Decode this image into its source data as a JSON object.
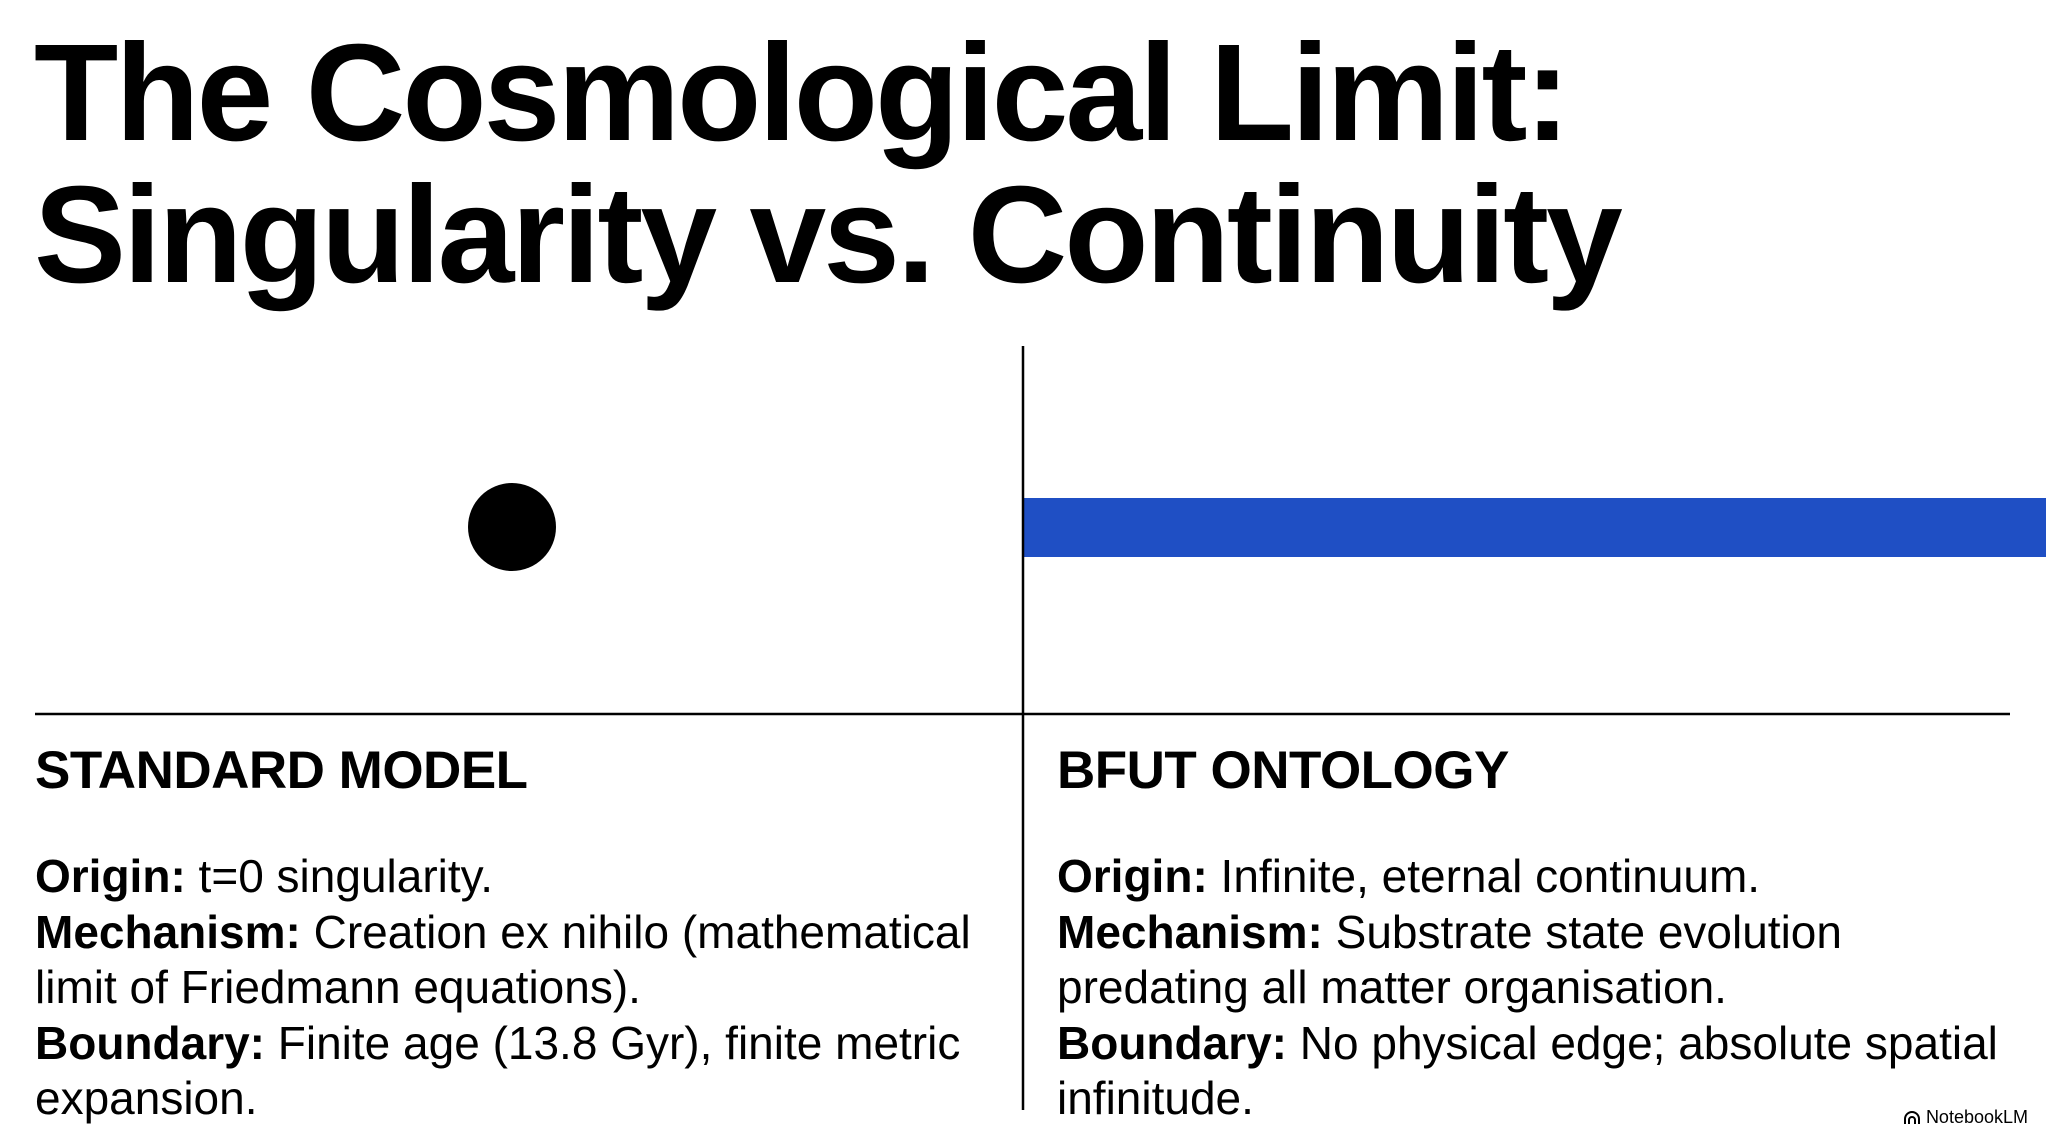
{
  "title": {
    "lines": [
      "The Cosmological Limit:",
      "Singularity vs. Continuity"
    ]
  },
  "columns": [
    {
      "heading": "STANDARD MODEL",
      "items": [
        {
          "label": "Origin:",
          "text": "t=0 singularity."
        },
        {
          "label": "Mechanism:",
          "text": "Creation ex nihilo (mathematical limit of Friedmann equations)."
        },
        {
          "label": "Boundary:",
          "text": "Finite age (13.8 Gyr), finite metric expansion."
        }
      ]
    },
    {
      "heading": "BFUT ONTOLOGY",
      "items": [
        {
          "label": "Origin:",
          "text": "Infinite, eternal continuum."
        },
        {
          "label": "Mechanism:",
          "text": "Substrate state evolution predating all matter organisation."
        },
        {
          "label": "Boundary:",
          "text": "No physical edge; absolute spatial infinitude."
        }
      ]
    }
  ],
  "watermark": "NotebookLM"
}
